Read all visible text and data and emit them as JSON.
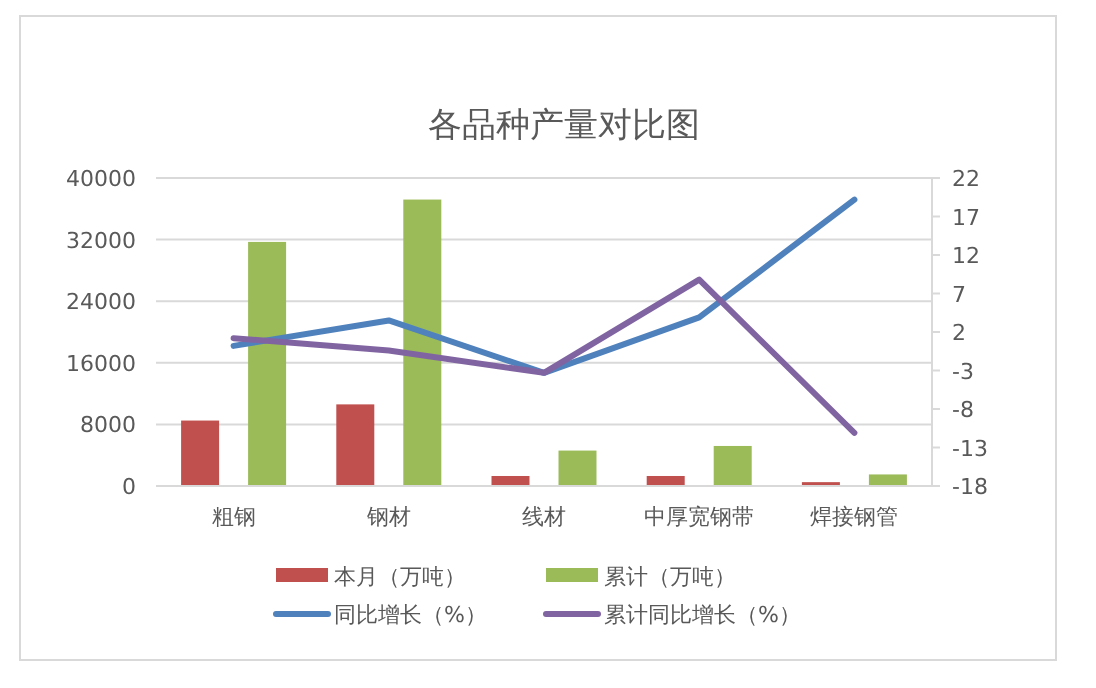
{
  "chart_data": {
    "type": "bar",
    "title": "各品种产量对比图",
    "categories": [
      "粗钢",
      "钢材",
      "线材",
      "中厚宽钢带",
      "焊接钢管"
    ],
    "series": [
      {
        "name": "本月（万吨）",
        "color": "#c0504d",
        "values": [
          8500,
          10600,
          1300,
          1300,
          500
        ]
      },
      {
        "name": "累计（万吨）",
        "color": "#9bbb59",
        "values": [
          31700,
          37200,
          4600,
          5200,
          1500
        ]
      },
      {
        "name": "同比增长（%）",
        "type": "line",
        "axis": "y2",
        "color": "#4f81bd",
        "values": [
          0.2,
          3.5,
          -3.3,
          3.9,
          19.2
        ]
      },
      {
        "name": "累计同比增长（%）",
        "type": "line",
        "axis": "y2",
        "color": "#8064a2",
        "values": [
          1.2,
          -0.4,
          -3.3,
          8.8,
          -11.1
        ]
      }
    ],
    "ylim": [
      0,
      40000
    ],
    "yticks": [
      0,
      8000,
      16000,
      24000,
      32000,
      40000
    ],
    "y2lim": [
      -18,
      22
    ],
    "y2ticks": [
      -18,
      -13,
      -8,
      -3,
      2,
      7,
      12,
      17,
      22
    ],
    "grid": "y",
    "legend": "bottom",
    "marker": "none",
    "line_style": "solid"
  }
}
